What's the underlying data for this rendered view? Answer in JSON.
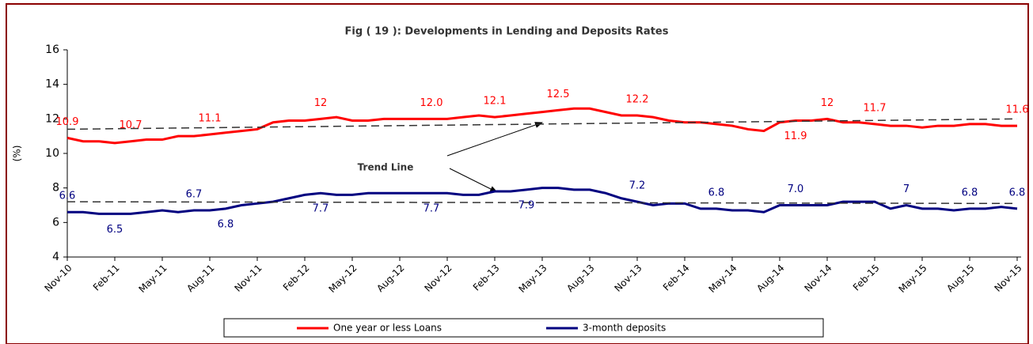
{
  "chart_data": {
    "type": "line",
    "title": "Fig ( 19 ): Developments in Lending and Deposits Rates",
    "y_label": "(%)",
    "annotation": "Trend Line",
    "categories": [
      "Nov-10",
      null,
      null,
      "Feb-11",
      null,
      null,
      "May-11",
      null,
      null,
      "Aug-11",
      null,
      null,
      "Nov-11",
      null,
      null,
      "Feb-12",
      null,
      null,
      "May-12",
      null,
      null,
      "Aug-12",
      null,
      null,
      "Nov-12",
      null,
      null,
      "Feb-13",
      null,
      null,
      "May-13",
      null,
      null,
      "Aug-13",
      null,
      null,
      "Nov-13",
      null,
      null,
      "Feb-14",
      null,
      null,
      "May-14",
      null,
      null,
      "Aug-14",
      null,
      null,
      "Nov-14",
      null,
      null,
      "Feb-15",
      null,
      null,
      "May-15",
      null,
      null,
      "Aug-15",
      null,
      null,
      "Nov-15"
    ],
    "series": [
      {
        "name": "One year or less Loans",
        "color": "#ff0000",
        "values": [
          10.9,
          10.7,
          10.7,
          10.6,
          10.7,
          10.8,
          10.8,
          11.0,
          11.0,
          11.1,
          11.2,
          11.3,
          11.4,
          11.8,
          11.9,
          11.9,
          12.0,
          12.1,
          11.9,
          11.9,
          12.0,
          12.0,
          12.0,
          12.0,
          12.0,
          12.1,
          12.2,
          12.1,
          12.2,
          12.3,
          12.4,
          12.5,
          12.6,
          12.6,
          12.4,
          12.2,
          12.2,
          12.1,
          11.9,
          11.8,
          11.8,
          11.7,
          11.6,
          11.4,
          11.3,
          11.8,
          11.9,
          11.9,
          12.0,
          11.8,
          11.8,
          11.7,
          11.6,
          11.6,
          11.5,
          11.6,
          11.6,
          11.7,
          11.7,
          11.6,
          11.6
        ],
        "value_labels": [
          "10.9",
          null,
          null,
          null,
          "10.7",
          null,
          null,
          null,
          null,
          "11.1",
          null,
          null,
          null,
          null,
          null,
          null,
          "12",
          null,
          null,
          null,
          null,
          null,
          null,
          "12.0",
          null,
          null,
          null,
          "12.1",
          null,
          null,
          null,
          "12.5",
          null,
          null,
          null,
          null,
          "12.2",
          null,
          null,
          null,
          null,
          null,
          null,
          null,
          null,
          null,
          "11.9",
          null,
          "12",
          null,
          null,
          "11.7",
          null,
          null,
          null,
          null,
          null,
          null,
          null,
          null,
          "11.6"
        ],
        "trend": [
          11.4,
          12.0
        ]
      },
      {
        "name": "3-month deposits",
        "color": "#000080",
        "values": [
          6.6,
          6.6,
          6.5,
          6.5,
          6.5,
          6.6,
          6.7,
          6.6,
          6.7,
          6.7,
          6.8,
          7.0,
          7.1,
          7.2,
          7.4,
          7.6,
          7.7,
          7.6,
          7.6,
          7.7,
          7.7,
          7.7,
          7.7,
          7.7,
          7.7,
          7.6,
          7.6,
          7.8,
          7.8,
          7.9,
          8.0,
          8.0,
          7.9,
          7.9,
          7.7,
          7.4,
          7.2,
          7.0,
          7.1,
          7.1,
          6.8,
          6.8,
          6.7,
          6.7,
          6.6,
          7.0,
          7.0,
          7.0,
          7.0,
          7.2,
          7.2,
          7.2,
          6.8,
          7.0,
          6.8,
          6.8,
          6.7,
          6.8,
          6.8,
          6.9,
          6.8
        ],
        "value_labels": [
          "6.6",
          null,
          null,
          "6.5",
          null,
          null,
          null,
          null,
          "6.7",
          null,
          "6.8",
          null,
          null,
          null,
          null,
          null,
          "7.7",
          null,
          null,
          null,
          null,
          null,
          null,
          "7.7",
          null,
          null,
          null,
          null,
          null,
          "7.9",
          null,
          null,
          null,
          null,
          null,
          null,
          "7.2",
          null,
          null,
          null,
          null,
          "6.8",
          null,
          null,
          null,
          null,
          "7.0",
          null,
          null,
          null,
          null,
          null,
          null,
          "7",
          null,
          null,
          null,
          "6.8",
          null,
          null,
          "6.8"
        ],
        "trend": [
          7.2,
          7.1
        ]
      }
    ],
    "ylim": [
      4,
      16
    ],
    "yticks": [
      4,
      6,
      8,
      10,
      12,
      14,
      16
    ]
  }
}
